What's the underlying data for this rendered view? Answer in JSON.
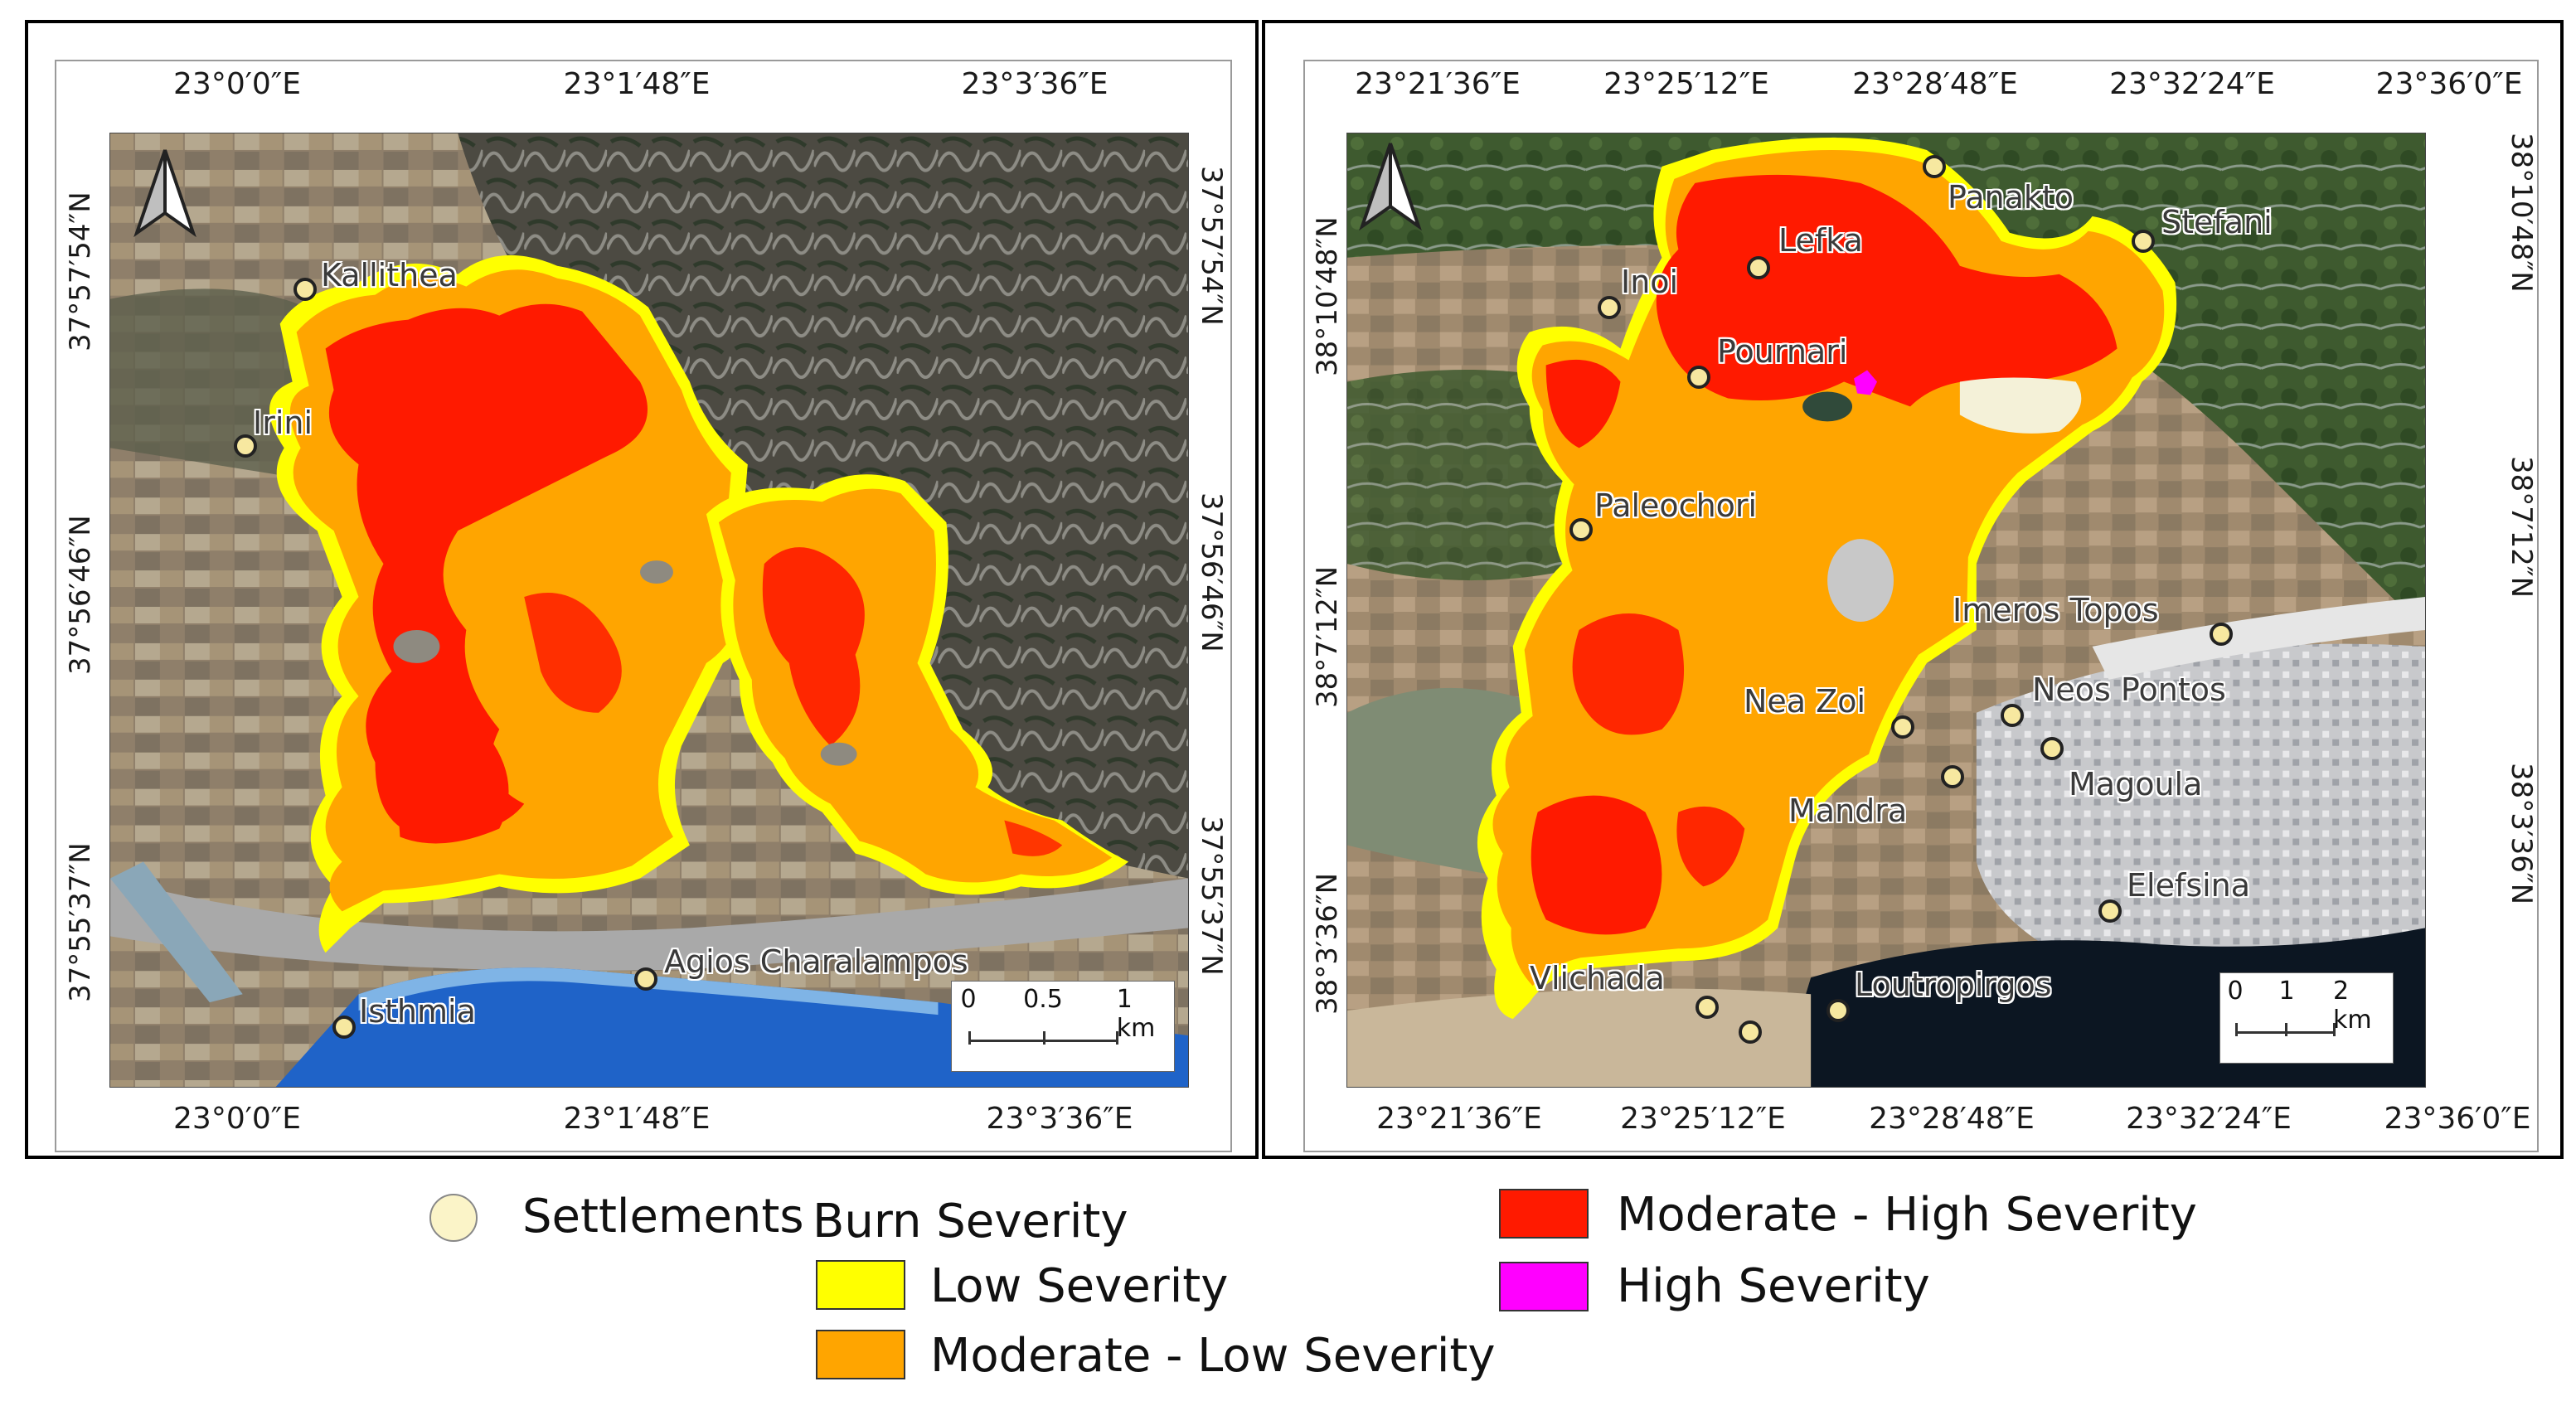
{
  "colors": {
    "low": "#ffff00",
    "moderate_low": "#ffa500",
    "moderate_high": "#ff1a00",
    "high": "#ff00ff",
    "settlement": "#f7e8a0",
    "sea": "#1f63c8",
    "dark_sea": "#0c1622"
  },
  "left_map": {
    "top_coords": [
      "23°0′0″E",
      "23°1′48″E",
      "23°3′36″E"
    ],
    "bottom_coords": [
      "23°0′0″E",
      "23°1′48″E",
      "23°3′36″E"
    ],
    "left_coords": [
      "37°57′54″N",
      "37°56′46″N",
      "37°55′37″N"
    ],
    "right_coords": [
      "37°57′54″N",
      "37°56′46″N",
      "37°55′37″N"
    ],
    "settlements": [
      "Kallithea",
      "Irini",
      "Agios Charalampos",
      "Isthmia"
    ],
    "scale": {
      "labels": [
        "0",
        "0.5",
        "1 km"
      ]
    }
  },
  "right_map": {
    "top_coords": [
      "23°21′36″E",
      "23°25′12″E",
      "23°28′48″E",
      "23°32′24″E",
      "23°36′0″E"
    ],
    "bottom_coords": [
      "23°21′36″E",
      "23°25′12″E",
      "23°28′48″E",
      "23°32′24″E",
      "23°36′0″E"
    ],
    "left_coords": [
      "38°10′48″N",
      "38°7′12″N",
      "38°3′36″N"
    ],
    "right_coords": [
      "38°10′48″N",
      "38°7′12″N",
      "38°3′36″N"
    ],
    "settlements": [
      "Panakto",
      "Stefani",
      "Lefka",
      "Inoi",
      "Pournari",
      "Paleochori",
      "Imeros Topos",
      "Nea Zoi",
      "Neos Pontos",
      "Magoula",
      "Mandra",
      "Elefsina",
      "Vlichada",
      "Loutropirgos"
    ],
    "scale": {
      "labels": [
        "0",
        "1",
        "2 km"
      ]
    }
  },
  "legend": {
    "settlements": "Settlements",
    "burn_severity": "Burn Severity",
    "low": "Low Severity",
    "moderate_low": "Moderate - Low Severity",
    "moderate_high": "Moderate - High Severity",
    "high": "High Severity"
  },
  "icons": {
    "north_arrow": "north-arrow-icon",
    "settlement": "settlement-dot-icon"
  }
}
